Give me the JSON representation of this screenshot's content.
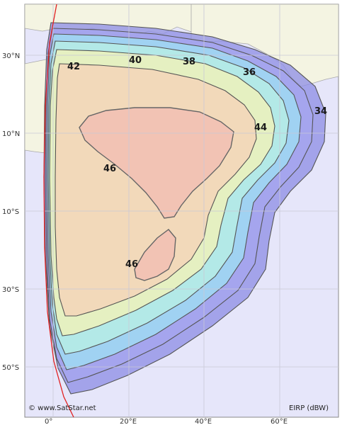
{
  "map": {
    "colors": {
      "ocean": "#e6e6fa",
      "land": "#f4f4e2",
      "grid": "#c8c8d6",
      "border": "#a9a9a9",
      "limb": "#e22222",
      "contour": "#555555"
    },
    "lat_labels": [
      "30°N",
      "10°N",
      "10°S",
      "30°S",
      "50°S"
    ],
    "lon_labels": [
      "0°",
      "20°E",
      "40°E",
      "60°E"
    ],
    "contour_labels": [
      {
        "text": "42"
      },
      {
        "text": "40"
      },
      {
        "text": "38"
      },
      {
        "text": "36"
      },
      {
        "text": "34"
      },
      {
        "text": "44"
      },
      {
        "text": "46"
      },
      {
        "text": "46"
      }
    ],
    "copyright": "© www.SatStar.net",
    "unit_label": "EIRP (dBW)"
  }
}
